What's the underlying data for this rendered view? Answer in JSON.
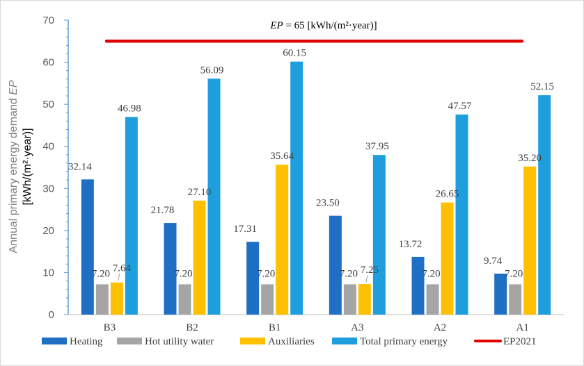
{
  "chart_data": {
    "type": "bar",
    "categories": [
      "B3",
      "B2",
      "B1",
      "A3",
      "A2",
      "A1"
    ],
    "series": [
      {
        "name": "Heating",
        "color": "#1f6fc5",
        "values": [
          32.14,
          21.78,
          17.31,
          23.5,
          13.72,
          9.74
        ],
        "labels": [
          "32.14",
          "21.78",
          "17.31",
          "23.50",
          "13.72",
          "9.74"
        ]
      },
      {
        "name": "Hot utility water",
        "color": "#a5a5a5",
        "values": [
          7.2,
          7.2,
          7.2,
          7.2,
          7.2,
          7.2
        ],
        "labels": [
          "7.20",
          "7.20",
          "7.20",
          "7.20",
          "7.20",
          "7.20"
        ]
      },
      {
        "name": "Auxiliaries",
        "color": "#ffc000",
        "values": [
          7.64,
          27.1,
          35.64,
          7.25,
          26.65,
          35.2
        ],
        "labels": [
          "7.64",
          "27.10",
          "35.64",
          "7.25",
          "26.65",
          "35.20"
        ]
      },
      {
        "name": "Total primary energy",
        "color": "#1f9ede",
        "values": [
          46.98,
          56.09,
          60.15,
          37.95,
          47.57,
          52.15
        ],
        "labels": [
          "46.98",
          "56.09",
          "60.15",
          "37.95",
          "47.57",
          "52.15"
        ]
      }
    ],
    "reference_line": {
      "name": "EP2021",
      "value": 65,
      "color": "#e00000"
    },
    "annotation": {
      "italic": "EP",
      "rest": " = 65 [kWh/(m²·year)]"
    },
    "ylabel": {
      "line1_plain": "Annual primary energy demand ",
      "line1_italic": "EP",
      "line2": "[kWh/(m²·year)]"
    },
    "yticks": [
      "0",
      "10",
      "20",
      "30",
      "40",
      "50",
      "60",
      "70"
    ],
    "ylim": [
      0,
      70
    ],
    "grid": false,
    "legend_position": "bottom"
  }
}
